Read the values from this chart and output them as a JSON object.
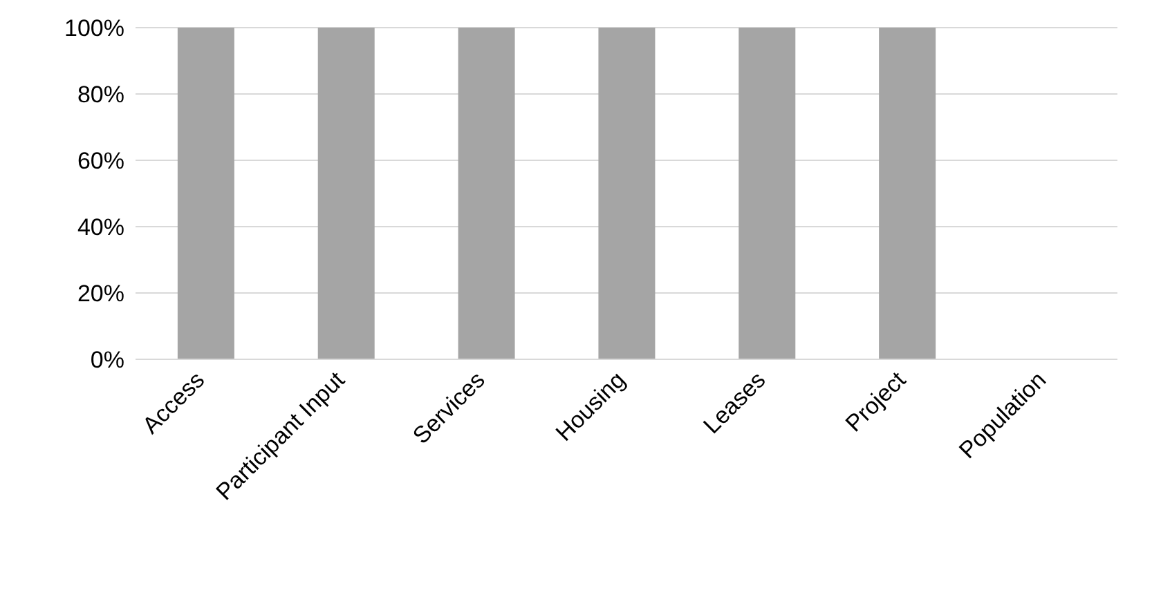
{
  "chart_data": {
    "type": "bar",
    "categories": [
      "Access",
      "Participant Input",
      "Services",
      "Housing",
      "Leases",
      "Project",
      "Population"
    ],
    "values": [
      100,
      100,
      100,
      100,
      100,
      100,
      0
    ],
    "color": "#a5a5a5",
    "ylim": [
      0,
      100
    ],
    "yticks": [
      {
        "value": 0,
        "label": "0%"
      },
      {
        "value": 20,
        "label": "20%"
      },
      {
        "value": 40,
        "label": "40%"
      },
      {
        "value": 60,
        "label": "60%"
      },
      {
        "value": 80,
        "label": "80%"
      },
      {
        "value": 100,
        "label": "100%"
      }
    ],
    "grid": "y"
  }
}
